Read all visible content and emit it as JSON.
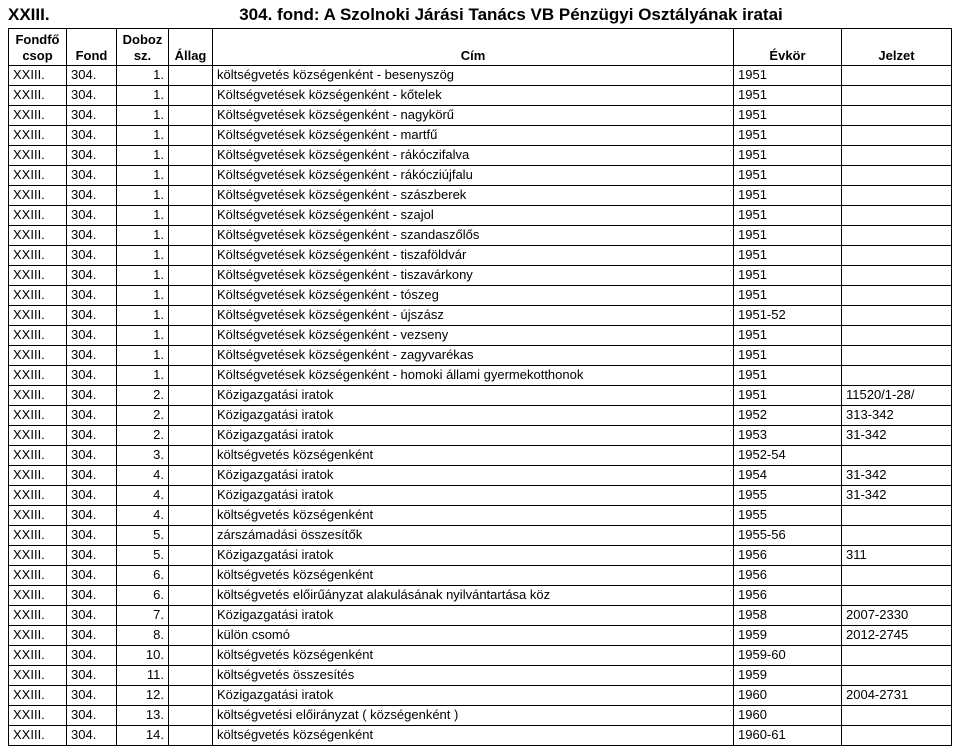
{
  "top": {
    "left": "XXIII.",
    "title": "304. fond: A Szolnoki Járási Tanács VB Pénzügyi Osztályának iratai"
  },
  "columns": [
    "Fondfő csop",
    "Fond",
    "Doboz sz.",
    "Állag",
    "Cím",
    "Évkör",
    "Jelzet"
  ],
  "rows": [
    [
      "XXIII.",
      "304.",
      "1.",
      "",
      "költségvetés községenként - besenyszög",
      "1951",
      ""
    ],
    [
      "XXIII.",
      "304.",
      "1.",
      "",
      "Költségvetések községenként - kőtelek",
      "1951",
      ""
    ],
    [
      "XXIII.",
      "304.",
      "1.",
      "",
      "Költségvetések községenként - nagykörű",
      "1951",
      ""
    ],
    [
      "XXIII.",
      "304.",
      "1.",
      "",
      "Költségvetések községenként - martfű",
      "1951",
      ""
    ],
    [
      "XXIII.",
      "304.",
      "1.",
      "",
      "Költségvetések községenként - rákóczifalva",
      "1951",
      ""
    ],
    [
      "XXIII.",
      "304.",
      "1.",
      "",
      "Költségvetések községenként - rákócziújfalu",
      "1951",
      ""
    ],
    [
      "XXIII.",
      "304.",
      "1.",
      "",
      "Költségvetések községenként - szászberek",
      "1951",
      ""
    ],
    [
      "XXIII.",
      "304.",
      "1.",
      "",
      "Költségvetések községenként - szajol",
      "1951",
      ""
    ],
    [
      "XXIII.",
      "304.",
      "1.",
      "",
      "Költségvetések községenként - szandaszőlős",
      "1951",
      ""
    ],
    [
      "XXIII.",
      "304.",
      "1.",
      "",
      "Költségvetések községenként - tiszaföldvár",
      "1951",
      ""
    ],
    [
      "XXIII.",
      "304.",
      "1.",
      "",
      "Költségvetések községenként - tiszavárkony",
      "1951",
      ""
    ],
    [
      "XXIII.",
      "304.",
      "1.",
      "",
      "Költségvetések községenként - tószeg",
      "1951",
      ""
    ],
    [
      "XXIII.",
      "304.",
      "1.",
      "",
      "Költségvetések községenként - újszász",
      "1951-52",
      ""
    ],
    [
      "XXIII.",
      "304.",
      "1.",
      "",
      "Költségvetések községenként - vezseny",
      "1951",
      ""
    ],
    [
      "XXIII.",
      "304.",
      "1.",
      "",
      "Költségvetések községenként - zagyvarékas",
      "1951",
      ""
    ],
    [
      "XXIII.",
      "304.",
      "1.",
      "",
      "Költségvetések községenként - homoki állami gyermekotthonok",
      "1951",
      ""
    ],
    [
      "XXIII.",
      "304.",
      "2.",
      "",
      "Közigazgatási iratok",
      "1951",
      "11520/1-28/"
    ],
    [
      "XXIII.",
      "304.",
      "2.",
      "",
      "Közigazgatási iratok",
      "1952",
      "313-342"
    ],
    [
      "XXIII.",
      "304.",
      "2.",
      "",
      "Közigazgatási iratok",
      "1953",
      "31-342"
    ],
    [
      "XXIII.",
      "304.",
      "3.",
      "",
      "költségvetés községenként",
      "1952-54",
      ""
    ],
    [
      "XXIII.",
      "304.",
      "4.",
      "",
      "Közigazgatási iratok",
      "1954",
      "31-342"
    ],
    [
      "XXIII.",
      "304.",
      "4.",
      "",
      "Közigazgatási iratok",
      "1955",
      "31-342"
    ],
    [
      "XXIII.",
      "304.",
      "4.",
      "",
      "költségvetés községenként",
      "1955",
      ""
    ],
    [
      "XXIII.",
      "304.",
      "5.",
      "",
      "zárszámadási összesítők",
      "1955-56",
      ""
    ],
    [
      "XXIII.",
      "304.",
      "5.",
      "",
      "Közigazgatási iratok",
      "1956",
      "311"
    ],
    [
      "XXIII.",
      "304.",
      "6.",
      "",
      "költségvetés községenként",
      "1956",
      ""
    ],
    [
      "XXIII.",
      "304.",
      "6.",
      "",
      "költségvetés előirűányzat alakulásának nyilvántartása köz",
      "1956",
      ""
    ],
    [
      "XXIII.",
      "304.",
      "7.",
      "",
      "Közigazgatási iratok",
      "1958",
      "2007-2330"
    ],
    [
      "XXIII.",
      "304.",
      "8.",
      "",
      "külön csomó",
      "1959",
      "2012-2745"
    ],
    [
      "XXIII.",
      "304.",
      "10.",
      "",
      "költségvetés községenként",
      "1959-60",
      ""
    ],
    [
      "XXIII.",
      "304.",
      "11.",
      "",
      "költségvetés összesítés",
      "1959",
      ""
    ],
    [
      "XXIII.",
      "304.",
      "12.",
      "",
      "Közigazgatási iratok",
      "1960",
      "2004-2731"
    ],
    [
      "XXIII.",
      "304.",
      "13.",
      "",
      "költségvetési előirányzat ( községenként )",
      "1960",
      ""
    ],
    [
      "XXIII.",
      "304.",
      "14.",
      "",
      "költségvetés községenként",
      "1960-61",
      ""
    ]
  ]
}
